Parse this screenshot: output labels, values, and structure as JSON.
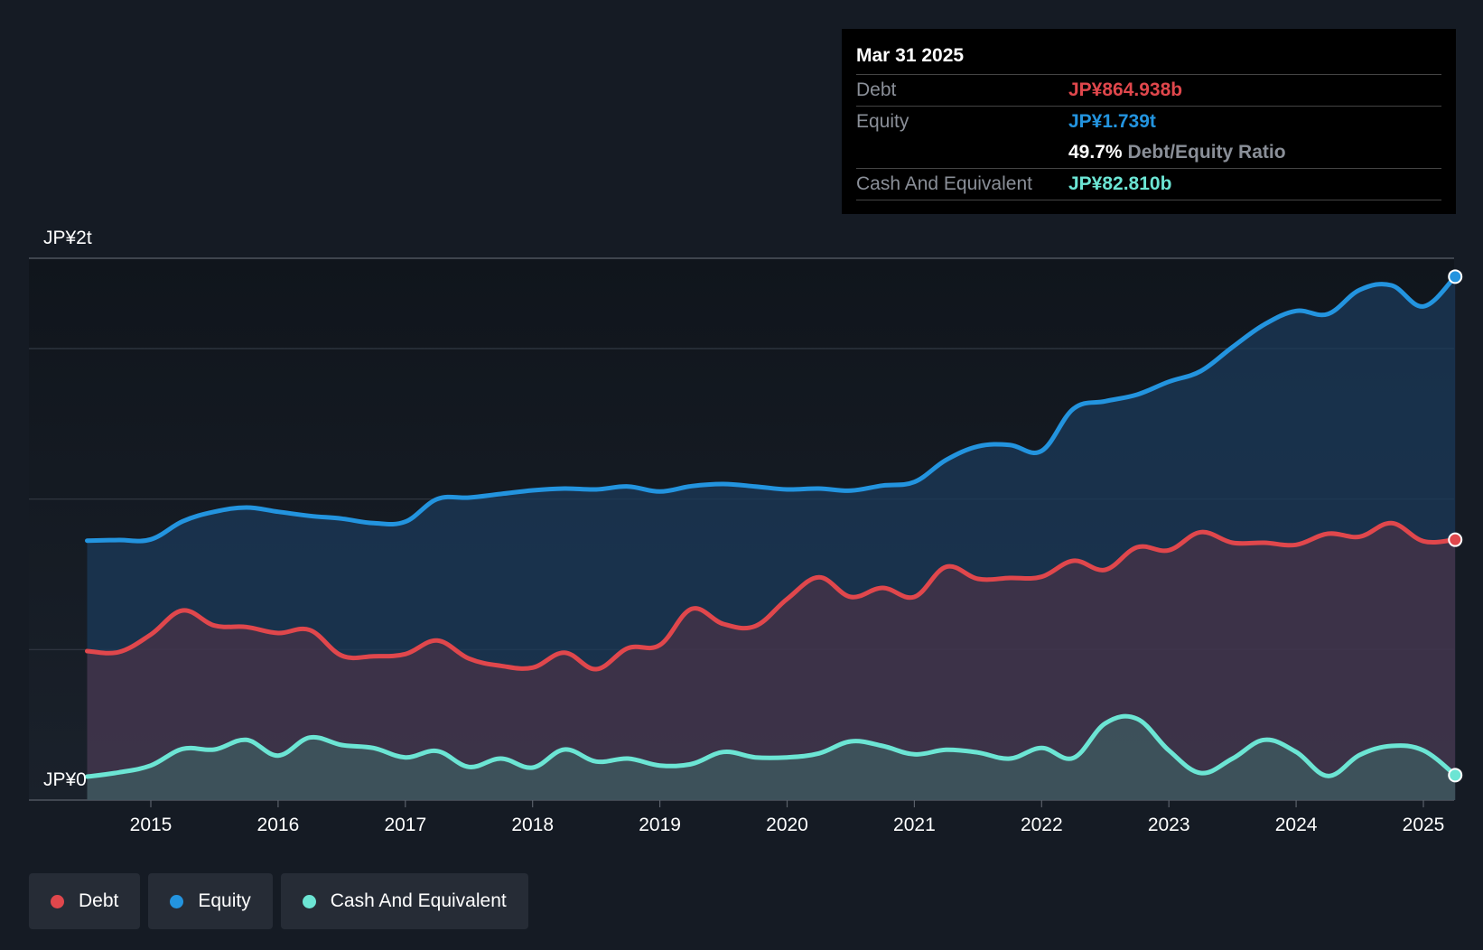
{
  "colors": {
    "debt": "#e0474c",
    "equity": "#2394df",
    "cash": "#6ce5d4",
    "grid": "#323843",
    "axis_text": "#ffffff"
  },
  "tooltip": {
    "date": "Mar 31 2025",
    "debt_label": "Debt",
    "debt_value": "JP¥864.938b",
    "equity_label": "Equity",
    "equity_value": "JP¥1.739t",
    "ratio_value": "49.7%",
    "ratio_label": "Debt/Equity Ratio",
    "cash_label": "Cash And Equivalent",
    "cash_value": "JP¥82.810b"
  },
  "legend": [
    {
      "label": "Debt",
      "color_key": "debt"
    },
    {
      "label": "Equity",
      "color_key": "equity"
    },
    {
      "label": "Cash And Equivalent",
      "color_key": "cash"
    }
  ],
  "chart_data": {
    "type": "area",
    "title": "",
    "xlabel": "",
    "ylabel": "",
    "y_top_label": "JP¥2t",
    "y_bottom_label": "JP¥0",
    "ylim": [
      0,
      1.8
    ],
    "xlim": [
      2014.5,
      2025.25
    ],
    "x_ticks": [
      2015,
      2016,
      2017,
      2018,
      2019,
      2020,
      2021,
      2022,
      2023,
      2024,
      2025
    ],
    "x_tick_labels": [
      "2015",
      "2016",
      "2017",
      "2018",
      "2019",
      "2020",
      "2021",
      "2022",
      "2023",
      "2024",
      "2025"
    ],
    "gridlines": [
      0.5,
      1.0,
      1.5,
      1.8
    ],
    "series": [
      {
        "name": "Equity",
        "color_key": "equity",
        "x": [
          2014.5,
          2014.75,
          2015.0,
          2015.25,
          2015.5,
          2015.75,
          2016.0,
          2016.25,
          2016.5,
          2016.75,
          2017.0,
          2017.25,
          2017.5,
          2017.75,
          2018.0,
          2018.25,
          2018.5,
          2018.75,
          2019.0,
          2019.25,
          2019.5,
          2019.75,
          2020.0,
          2020.25,
          2020.5,
          2020.75,
          2021.0,
          2021.25,
          2021.5,
          2021.75,
          2022.0,
          2022.25,
          2022.5,
          2022.75,
          2023.0,
          2023.25,
          2023.5,
          2023.75,
          2024.0,
          2024.25,
          2024.5,
          2024.75,
          2025.0,
          2025.25
        ],
        "values": [
          0.862,
          0.864,
          0.866,
          0.926,
          0.958,
          0.972,
          0.958,
          0.944,
          0.935,
          0.92,
          0.925,
          1.0,
          1.005,
          1.017,
          1.029,
          1.035,
          1.032,
          1.042,
          1.025,
          1.043,
          1.05,
          1.042,
          1.032,
          1.035,
          1.028,
          1.045,
          1.057,
          1.13,
          1.175,
          1.18,
          1.16,
          1.3,
          1.325,
          1.347,
          1.39,
          1.425,
          1.505,
          1.58,
          1.625,
          1.615,
          1.695,
          1.71,
          1.64,
          1.739
        ]
      },
      {
        "name": "Debt",
        "color_key": "debt",
        "x": [
          2014.5,
          2014.75,
          2015.0,
          2015.25,
          2015.5,
          2015.75,
          2016.0,
          2016.25,
          2016.5,
          2016.75,
          2017.0,
          2017.25,
          2017.5,
          2017.75,
          2018.0,
          2018.25,
          2018.5,
          2018.75,
          2019.0,
          2019.25,
          2019.5,
          2019.75,
          2020.0,
          2020.25,
          2020.5,
          2020.75,
          2021.0,
          2021.25,
          2021.5,
          2021.75,
          2022.0,
          2022.25,
          2022.5,
          2022.75,
          2023.0,
          2023.25,
          2023.5,
          2023.75,
          2024.0,
          2024.25,
          2024.5,
          2024.75,
          2025.0,
          2025.25
        ],
        "values": [
          0.495,
          0.492,
          0.55,
          0.63,
          0.58,
          0.575,
          0.555,
          0.565,
          0.48,
          0.478,
          0.485,
          0.53,
          0.47,
          0.446,
          0.44,
          0.49,
          0.435,
          0.505,
          0.515,
          0.635,
          0.585,
          0.578,
          0.668,
          0.74,
          0.675,
          0.705,
          0.675,
          0.775,
          0.735,
          0.738,
          0.742,
          0.795,
          0.765,
          0.84,
          0.83,
          0.89,
          0.855,
          0.855,
          0.848,
          0.885,
          0.875,
          0.92,
          0.86,
          0.865
        ]
      },
      {
        "name": "Cash And Equivalent",
        "color_key": "cash",
        "x": [
          2014.5,
          2014.75,
          2015.0,
          2015.25,
          2015.5,
          2015.75,
          2016.0,
          2016.25,
          2016.5,
          2016.75,
          2017.0,
          2017.25,
          2017.5,
          2017.75,
          2018.0,
          2018.25,
          2018.5,
          2018.75,
          2019.0,
          2019.25,
          2019.5,
          2019.75,
          2020.0,
          2020.25,
          2020.5,
          2020.75,
          2021.0,
          2021.25,
          2021.5,
          2021.75,
          2022.0,
          2022.25,
          2022.5,
          2022.75,
          2023.0,
          2023.25,
          2023.5,
          2023.75,
          2024.0,
          2024.25,
          2024.5,
          2024.75,
          2025.0,
          2025.25
        ],
        "values": [
          0.078,
          0.092,
          0.115,
          0.17,
          0.168,
          0.2,
          0.148,
          0.208,
          0.183,
          0.173,
          0.142,
          0.163,
          0.11,
          0.138,
          0.108,
          0.168,
          0.128,
          0.138,
          0.115,
          0.12,
          0.16,
          0.142,
          0.142,
          0.155,
          0.195,
          0.18,
          0.152,
          0.167,
          0.158,
          0.138,
          0.173,
          0.14,
          0.255,
          0.27,
          0.165,
          0.09,
          0.138,
          0.2,
          0.16,
          0.08,
          0.15,
          0.18,
          0.165,
          0.083
        ]
      }
    ]
  }
}
